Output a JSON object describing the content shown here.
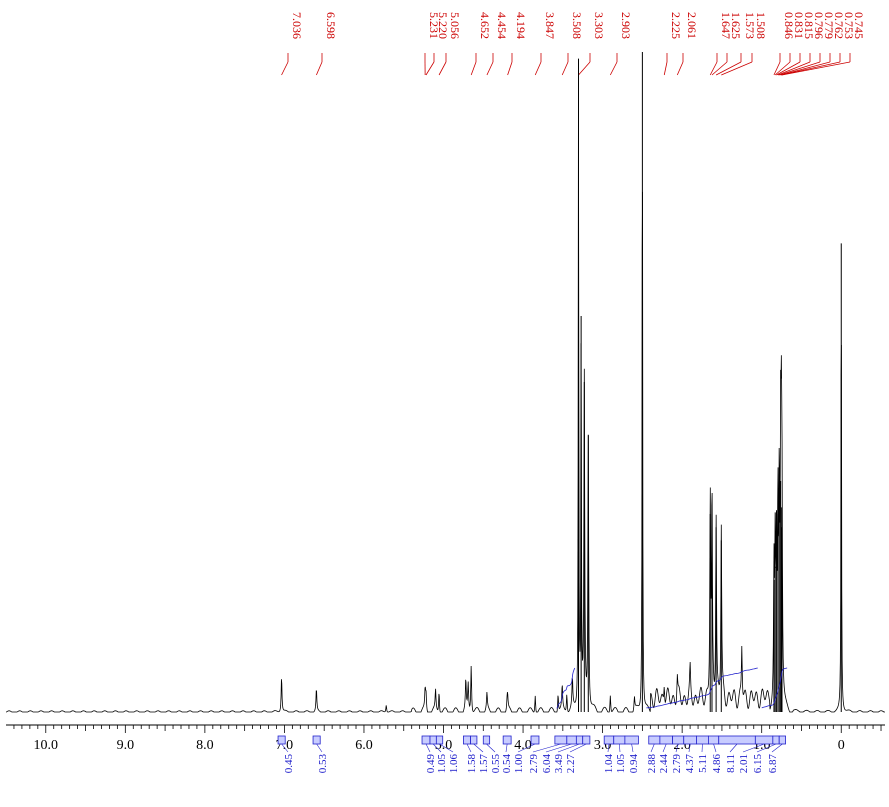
{
  "chart_data": {
    "type": "line",
    "title": "",
    "xlabel": "",
    "ylabel": "",
    "xlim": [
      10.5,
      -0.55
    ],
    "x_reversed": true,
    "x_ticks": [
      "10.0",
      "9.0",
      "8.0",
      "7.0",
      "6.0",
      "5.0",
      "4.0",
      "3.0",
      "2.0",
      "1.0",
      "0"
    ],
    "grid": false,
    "colors": {
      "spectrum": "#000000",
      "peak_labels": "#cc0000",
      "integrals": "#2222cc"
    },
    "peak_labels": [
      "7.036",
      "6.598",
      "5.231",
      "5.220",
      "5.056",
      "4.652",
      "4.454",
      "4.194",
      "3.847",
      "3.508",
      "3.303",
      "2.903",
      "2.225",
      "2.061",
      "1.647",
      "1.625",
      "1.573",
      "1.508",
      "0.846",
      "0.831",
      "0.815",
      "0.796",
      "0.779",
      "0.762",
      "0.753",
      "0.745"
    ],
    "peaks": [
      {
        "x": 7.036,
        "h": 0.055
      },
      {
        "x": 6.598,
        "h": 0.035
      },
      {
        "x": 5.72,
        "h": 0.012
      },
      {
        "x": 5.231,
        "h": 0.03
      },
      {
        "x": 5.22,
        "h": 0.025
      },
      {
        "x": 5.1,
        "h": 0.03
      },
      {
        "x": 5.056,
        "h": 0.035
      },
      {
        "x": 4.72,
        "h": 0.045
      },
      {
        "x": 4.69,
        "h": 0.04
      },
      {
        "x": 4.652,
        "h": 0.075
      },
      {
        "x": 4.454,
        "h": 0.025
      },
      {
        "x": 4.2,
        "h": 0.015
      },
      {
        "x": 4.194,
        "h": 0.018
      },
      {
        "x": 3.847,
        "h": 0.03
      },
      {
        "x": 3.56,
        "h": 0.03
      },
      {
        "x": 3.508,
        "h": 0.035
      },
      {
        "x": 3.45,
        "h": 0.03
      },
      {
        "x": 3.38,
        "h": 0.045
      },
      {
        "x": 3.303,
        "h": 0.99
      },
      {
        "x": 3.27,
        "h": 0.6
      },
      {
        "x": 3.23,
        "h": 0.5
      },
      {
        "x": 3.18,
        "h": 0.42
      },
      {
        "x": 2.903,
        "h": 0.03
      },
      {
        "x": 2.6,
        "h": 0.02
      },
      {
        "x": 2.5,
        "h": 1.0
      },
      {
        "x": 2.225,
        "h": 0.03
      },
      {
        "x": 2.061,
        "h": 0.035
      },
      {
        "x": 1.9,
        "h": 0.04
      },
      {
        "x": 1.647,
        "h": 0.3
      },
      {
        "x": 1.625,
        "h": 0.3
      },
      {
        "x": 1.573,
        "h": 0.28
      },
      {
        "x": 1.508,
        "h": 0.26
      },
      {
        "x": 1.25,
        "h": 0.08
      },
      {
        "x": 0.846,
        "h": 0.2
      },
      {
        "x": 0.831,
        "h": 0.22
      },
      {
        "x": 0.815,
        "h": 0.25
      },
      {
        "x": 0.796,
        "h": 0.3
      },
      {
        "x": 0.779,
        "h": 0.32
      },
      {
        "x": 0.762,
        "h": 0.35
      },
      {
        "x": 0.753,
        "h": 0.31
      },
      {
        "x": 0.745,
        "h": 0.28
      },
      {
        "x": 0.0,
        "h": 0.71
      }
    ],
    "integrals": [
      {
        "x1": 7.08,
        "x2": 6.99,
        "value": "0.45"
      },
      {
        "x1": 6.64,
        "x2": 6.55,
        "value": "0.53"
      },
      {
        "x1": 5.27,
        "x2": 5.17,
        "value": "0.49"
      },
      {
        "x1": 5.17,
        "x2": 5.09,
        "value": "1.05"
      },
      {
        "x1": 5.09,
        "x2": 5.01,
        "value": "1.06"
      },
      {
        "x1": 4.75,
        "x2": 4.66,
        "value": "1.58"
      },
      {
        "x1": 4.66,
        "x2": 4.58,
        "value": "1.57"
      },
      {
        "x1": 4.5,
        "x2": 4.42,
        "value": "0.55"
      },
      {
        "x1": 4.25,
        "x2": 4.15,
        "value": "0.54"
      },
      {
        "x1": 3.9,
        "x2": 3.8,
        "value": "1.00"
      },
      {
        "x1": 3.6,
        "x2": 3.45,
        "value": "2.79"
      },
      {
        "x1": 3.45,
        "x2": 3.33,
        "value": "6.04"
      },
      {
        "x1": 3.33,
        "x2": 3.25,
        "value": "3.49"
      },
      {
        "x1": 3.25,
        "x2": 3.16,
        "value": "2.27"
      },
      {
        "x1": 2.98,
        "x2": 2.86,
        "value": "1.04"
      },
      {
        "x1": 2.86,
        "x2": 2.72,
        "value": "1.05"
      },
      {
        "x1": 2.72,
        "x2": 2.55,
        "value": "0.94"
      },
      {
        "x1": 2.42,
        "x2": 2.28,
        "value": "2.88"
      },
      {
        "x1": 2.28,
        "x2": 2.12,
        "value": "2.44"
      },
      {
        "x1": 2.12,
        "x2": 1.98,
        "value": "2.79"
      },
      {
        "x1": 1.98,
        "x2": 1.82,
        "value": "4.37"
      },
      {
        "x1": 1.82,
        "x2": 1.67,
        "value": "5.11"
      },
      {
        "x1": 1.67,
        "x2": 1.54,
        "value": "4.86"
      },
      {
        "x1": 1.54,
        "x2": 1.08,
        "value": "8.11"
      },
      {
        "x1": 1.08,
        "x2": 0.86,
        "value": "2.01"
      },
      {
        "x1": 0.86,
        "x2": 0.78,
        "value": "6.15"
      },
      {
        "x1": 0.78,
        "x2": 0.7,
        "value": "6.87"
      }
    ]
  }
}
